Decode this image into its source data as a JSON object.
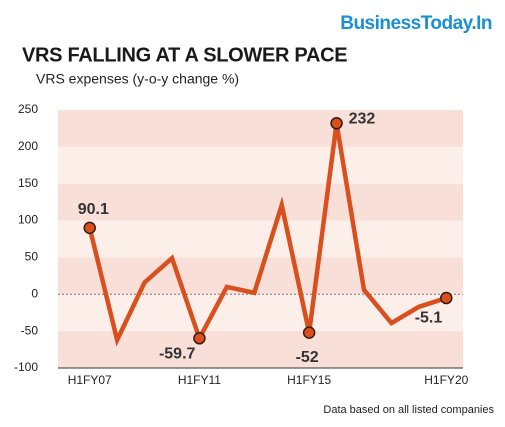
{
  "brand": "BusinessToday.In",
  "chart_data": {
    "type": "line",
    "title": "VRS FALLING AT A SLOWER PACE",
    "subtitle": "VRS expenses (y-o-y change %)",
    "note": "Data based on all listed companies",
    "categories": [
      "H1FY07",
      null,
      null,
      null,
      "H1FY11",
      null,
      null,
      null,
      "H1FY15",
      null,
      null,
      null,
      null,
      "H1FY20"
    ],
    "series": [
      {
        "name": "VRS expenses",
        "color": "#d9501e",
        "values": [
          90.1,
          -62,
          16,
          49,
          -59.7,
          10,
          2,
          121,
          -52,
          232,
          6,
          -39,
          -17,
          -5.1
        ],
        "value_labels": [
          "90.1",
          null,
          null,
          null,
          "-59.7",
          null,
          null,
          null,
          "-52",
          "232",
          null,
          null,
          null,
          "-5.1"
        ]
      }
    ],
    "ylim": [
      -100,
      250
    ],
    "yticks": [
      -100,
      -50,
      0,
      50,
      100,
      150,
      200,
      250
    ],
    "grid": true
  }
}
